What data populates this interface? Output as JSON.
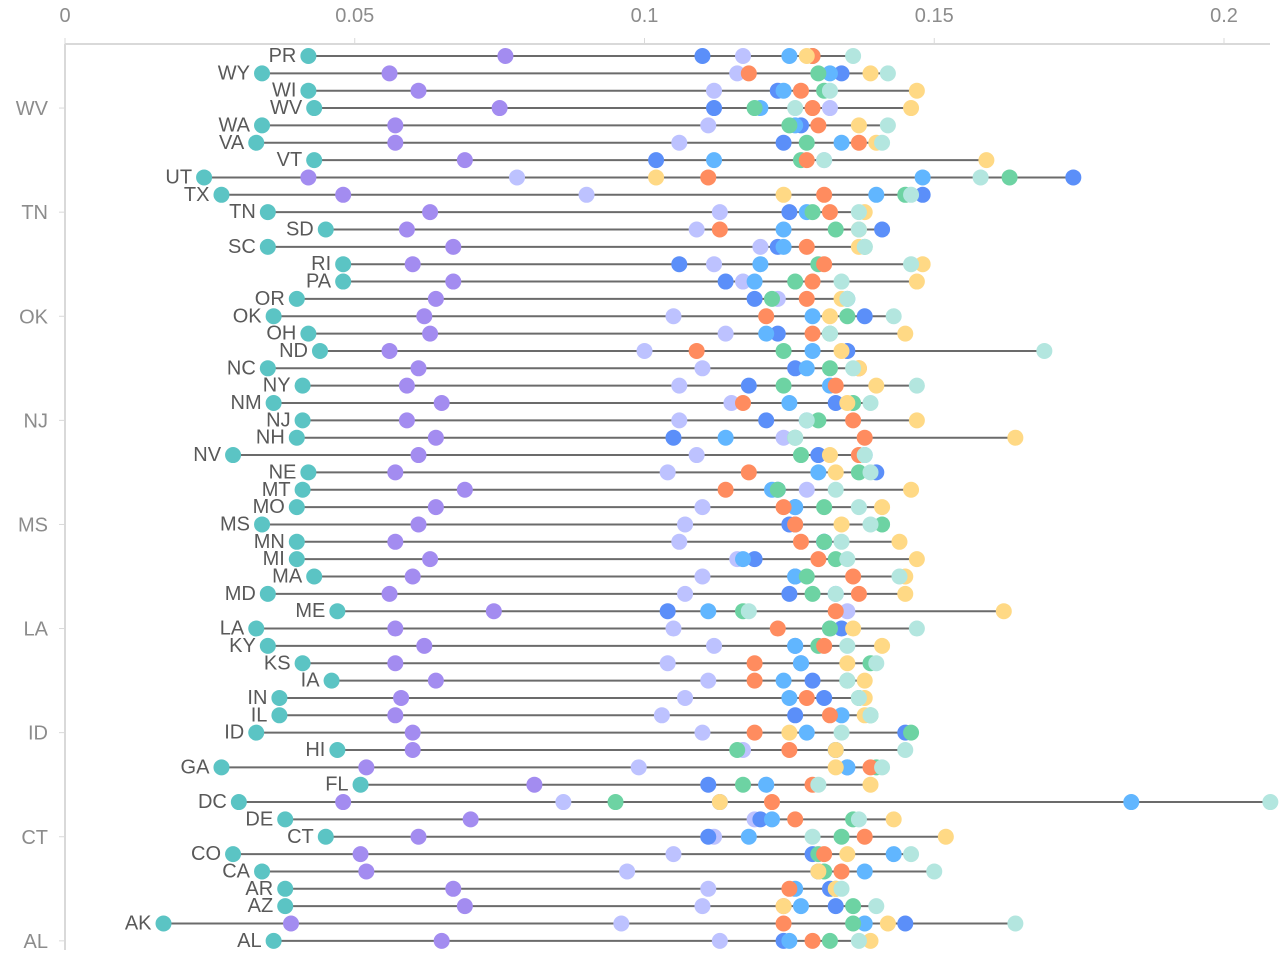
{
  "chart_data": {
    "type": "scatter",
    "subtype": "dot-plot",
    "x_axis": {
      "position": "top",
      "ticks": [
        0,
        0.05,
        0.1,
        0.15,
        0.2
      ],
      "tick_labels": [
        "0",
        "0.05",
        "0.1",
        "0.15",
        "0.2"
      ],
      "range": [
        0,
        0.208
      ]
    },
    "y_ticks": [
      "WV",
      "TN",
      "OK",
      "NJ",
      "MS",
      "LA",
      "ID",
      "CT",
      "AL"
    ],
    "grid": false,
    "legend": "none",
    "line_color": "#6b6b6b",
    "series_colors": [
      "#5BC4C4",
      "#A38CF0",
      "#BDC2FF",
      "#5B8FF9",
      "#61B6FF",
      "#6DD3A3",
      "#FF8C5F",
      "#FFD985",
      "#B3E6DF"
    ],
    "rows": [
      {
        "state": "PR",
        "values": [
          0.042,
          0.076,
          0.117,
          0.11,
          0.125,
          0.129,
          0.129,
          0.128,
          0.136
        ]
      },
      {
        "state": "WY",
        "values": [
          0.034,
          0.056,
          0.116,
          0.134,
          0.132,
          0.13,
          0.118,
          0.139,
          0.142
        ]
      },
      {
        "state": "WI",
        "values": [
          0.042,
          0.061,
          0.112,
          0.123,
          0.124,
          0.131,
          0.127,
          0.147,
          0.132
        ]
      },
      {
        "state": "WV",
        "values": [
          0.043,
          0.075,
          0.132,
          0.112,
          0.12,
          0.119,
          0.129,
          0.146,
          0.126
        ]
      },
      {
        "state": "WA",
        "values": [
          0.034,
          0.057,
          0.111,
          0.127,
          0.126,
          0.125,
          0.13,
          0.137,
          0.142
        ]
      },
      {
        "state": "VA",
        "values": [
          0.033,
          0.057,
          0.106,
          0.124,
          0.134,
          0.128,
          0.137,
          0.14,
          0.141
        ]
      },
      {
        "state": "VT",
        "values": [
          0.043,
          0.069,
          0.131,
          0.102,
          0.112,
          0.127,
          0.128,
          0.159,
          0.131
        ]
      },
      {
        "state": "UT",
        "values": [
          0.024,
          0.042,
          0.078,
          0.174,
          0.148,
          0.163,
          0.111,
          0.102,
          0.158
        ]
      },
      {
        "state": "TX",
        "values": [
          0.027,
          0.048,
          0.09,
          0.148,
          0.14,
          0.145,
          0.131,
          0.124,
          0.146
        ]
      },
      {
        "state": "TN",
        "values": [
          0.035,
          0.063,
          0.113,
          0.125,
          0.128,
          0.129,
          0.132,
          0.138,
          0.137
        ]
      },
      {
        "state": "SD",
        "values": [
          0.045,
          0.059,
          0.109,
          0.141,
          0.124,
          0.133,
          0.113,
          0.137,
          0.137
        ]
      },
      {
        "state": "SC",
        "values": [
          0.035,
          0.067,
          0.12,
          0.123,
          0.124,
          0.138,
          0.128,
          0.137,
          0.138
        ]
      },
      {
        "state": "RI",
        "values": [
          0.048,
          0.06,
          0.112,
          0.106,
          0.12,
          0.13,
          0.131,
          0.148,
          0.146
        ]
      },
      {
        "state": "PA",
        "values": [
          0.048,
          0.067,
          0.117,
          0.114,
          0.119,
          0.126,
          0.129,
          0.147,
          0.134
        ]
      },
      {
        "state": "OR",
        "values": [
          0.04,
          0.064,
          0.123,
          0.119,
          0.135,
          0.122,
          0.128,
          0.134,
          0.135
        ]
      },
      {
        "state": "OK",
        "values": [
          0.036,
          0.062,
          0.105,
          0.138,
          0.129,
          0.135,
          0.121,
          0.132,
          0.143
        ]
      },
      {
        "state": "OH",
        "values": [
          0.042,
          0.063,
          0.114,
          0.123,
          0.121,
          0.132,
          0.129,
          0.145,
          0.132
        ]
      },
      {
        "state": "ND",
        "values": [
          0.044,
          0.056,
          0.1,
          0.135,
          0.129,
          0.124,
          0.109,
          0.134,
          0.169
        ]
      },
      {
        "state": "NC",
        "values": [
          0.035,
          0.061,
          0.11,
          0.126,
          0.128,
          0.132,
          0.137,
          0.137,
          0.136
        ]
      },
      {
        "state": "NY",
        "values": [
          0.041,
          0.059,
          0.106,
          0.118,
          0.132,
          0.124,
          0.133,
          0.14,
          0.147
        ]
      },
      {
        "state": "NM",
        "values": [
          0.036,
          0.065,
          0.115,
          0.133,
          0.125,
          0.136,
          0.117,
          0.135,
          0.139
        ]
      },
      {
        "state": "NJ",
        "values": [
          0.041,
          0.059,
          0.106,
          0.121,
          0.128,
          0.13,
          0.136,
          0.147,
          0.128
        ]
      },
      {
        "state": "NH",
        "values": [
          0.04,
          0.064,
          0.124,
          0.105,
          0.114,
          0.126,
          0.138,
          0.164,
          0.126
        ]
      },
      {
        "state": "NV",
        "values": [
          0.029,
          0.061,
          0.109,
          0.13,
          0.138,
          0.127,
          0.137,
          0.132,
          0.138
        ]
      },
      {
        "state": "NE",
        "values": [
          0.042,
          0.057,
          0.104,
          0.14,
          0.13,
          0.137,
          0.118,
          0.133,
          0.139
        ]
      },
      {
        "state": "MT",
        "values": [
          0.041,
          0.069,
          0.128,
          0.123,
          0.122,
          0.123,
          0.114,
          0.146,
          0.133
        ]
      },
      {
        "state": "MO",
        "values": [
          0.04,
          0.064,
          0.11,
          0.126,
          0.126,
          0.131,
          0.124,
          0.141,
          0.137
        ]
      },
      {
        "state": "MS",
        "values": [
          0.034,
          0.061,
          0.107,
          0.125,
          0.126,
          0.141,
          0.126,
          0.134,
          0.139
        ]
      },
      {
        "state": "MN",
        "values": [
          0.04,
          0.057,
          0.106,
          0.131,
          0.131,
          0.131,
          0.127,
          0.144,
          0.134
        ]
      },
      {
        "state": "MI",
        "values": [
          0.04,
          0.063,
          0.116,
          0.119,
          0.117,
          0.133,
          0.13,
          0.147,
          0.135
        ]
      },
      {
        "state": "MA",
        "values": [
          0.043,
          0.06,
          0.11,
          0.126,
          0.126,
          0.128,
          0.136,
          0.145,
          0.144
        ]
      },
      {
        "state": "MD",
        "values": [
          0.035,
          0.056,
          0.107,
          0.125,
          0.133,
          0.129,
          0.137,
          0.145,
          0.133
        ]
      },
      {
        "state": "ME",
        "values": [
          0.047,
          0.074,
          0.135,
          0.104,
          0.111,
          0.117,
          0.133,
          0.162,
          0.118
        ]
      },
      {
        "state": "LA",
        "values": [
          0.033,
          0.057,
          0.105,
          0.134,
          0.132,
          0.132,
          0.123,
          0.136,
          0.147
        ]
      },
      {
        "state": "KY",
        "values": [
          0.035,
          0.062,
          0.112,
          0.126,
          0.126,
          0.13,
          0.131,
          0.141,
          0.135
        ]
      },
      {
        "state": "KS",
        "values": [
          0.041,
          0.057,
          0.104,
          0.127,
          0.127,
          0.139,
          0.119,
          0.135,
          0.14
        ]
      },
      {
        "state": "IA",
        "values": [
          0.046,
          0.064,
          0.111,
          0.129,
          0.124,
          0.135,
          0.119,
          0.138,
          0.135
        ]
      },
      {
        "state": "IN",
        "values": [
          0.037,
          0.058,
          0.107,
          0.131,
          0.125,
          0.137,
          0.128,
          0.138,
          0.137
        ]
      },
      {
        "state": "IL",
        "values": [
          0.037,
          0.057,
          0.103,
          0.126,
          0.134,
          0.139,
          0.132,
          0.138,
          0.139
        ]
      },
      {
        "state": "ID",
        "values": [
          0.033,
          0.06,
          0.11,
          0.145,
          0.128,
          0.146,
          0.119,
          0.125,
          0.134
        ]
      },
      {
        "state": "HI",
        "values": [
          0.047,
          0.06,
          0.117,
          0.133,
          0.133,
          0.116,
          0.125,
          0.133,
          0.145
        ]
      },
      {
        "state": "GA",
        "values": [
          0.027,
          0.052,
          0.099,
          0.135,
          0.135,
          0.14,
          0.139,
          0.133,
          0.141
        ]
      },
      {
        "state": "FL",
        "values": [
          0.051,
          0.081,
          0.121,
          0.111,
          0.121,
          0.117,
          0.129,
          0.139,
          0.13
        ]
      },
      {
        "state": "DC",
        "values": [
          0.03,
          0.048,
          0.086,
          0.113,
          0.184,
          0.095,
          0.122,
          0.113,
          0.208
        ]
      },
      {
        "state": "DE",
        "values": [
          0.038,
          0.07,
          0.119,
          0.12,
          0.122,
          0.136,
          0.126,
          0.143,
          0.137
        ]
      },
      {
        "state": "CT",
        "values": [
          0.045,
          0.061,
          0.112,
          0.111,
          0.118,
          0.134,
          0.138,
          0.152,
          0.129
        ]
      },
      {
        "state": "CO",
        "values": [
          0.029,
          0.051,
          0.105,
          0.129,
          0.143,
          0.13,
          0.131,
          0.135,
          0.146
        ]
      },
      {
        "state": "CA",
        "values": [
          0.034,
          0.052,
          0.097,
          0.13,
          0.138,
          0.131,
          0.134,
          0.13,
          0.15
        ]
      },
      {
        "state": "AR",
        "values": [
          0.038,
          0.067,
          0.111,
          0.132,
          0.126,
          0.133,
          0.125,
          0.133,
          0.134
        ]
      },
      {
        "state": "AZ",
        "values": [
          0.038,
          0.069,
          0.11,
          0.133,
          0.127,
          0.136,
          0.124,
          0.124,
          0.14
        ]
      },
      {
        "state": "AK",
        "values": [
          0.017,
          0.039,
          0.096,
          0.145,
          0.138,
          0.136,
          0.124,
          0.142,
          0.164
        ]
      },
      {
        "state": "AL",
        "values": [
          0.036,
          0.065,
          0.113,
          0.124,
          0.125,
          0.132,
          0.129,
          0.139,
          0.137
        ]
      }
    ]
  }
}
